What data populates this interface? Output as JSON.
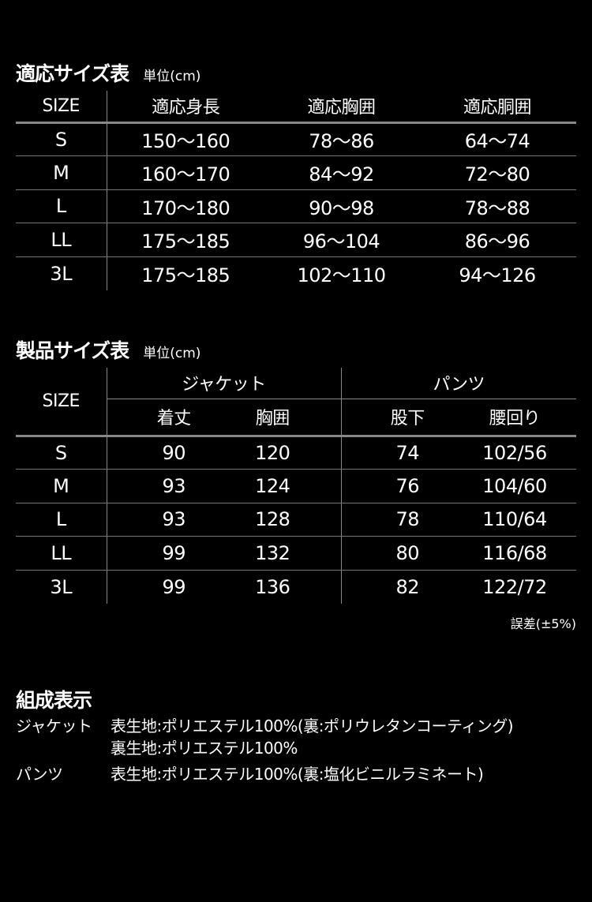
{
  "fit_table": {
    "title": "適応サイズ表",
    "unit": "単位(cm)",
    "headers": [
      "SIZE",
      "適応身長",
      "適応胸囲",
      "適応胴囲"
    ],
    "rows": [
      [
        "S",
        "150〜160",
        "78〜86",
        "64〜74"
      ],
      [
        "M",
        "160〜170",
        "84〜92",
        "72〜80"
      ],
      [
        "L",
        "170〜180",
        "90〜98",
        "78〜88"
      ],
      [
        "LL",
        "175〜185",
        "96〜104",
        "86〜96"
      ],
      [
        "3L",
        "175〜185",
        "102〜110",
        "94〜126"
      ]
    ]
  },
  "product_table": {
    "title": "製品サイズ表",
    "unit": "単位(cm)",
    "size_header": "SIZE",
    "groups": [
      "ジャケット",
      "パンツ"
    ],
    "sub_headers": [
      "着丈",
      "胸囲",
      "股下",
      "腰回り"
    ],
    "rows": [
      [
        "S",
        "90",
        "120",
        "74",
        "102/56"
      ],
      [
        "M",
        "93",
        "124",
        "76",
        "104/60"
      ],
      [
        "L",
        "93",
        "128",
        "78",
        "110/64"
      ],
      [
        "LL",
        "99",
        "132",
        "80",
        "116/68"
      ],
      [
        "3L",
        "99",
        "136",
        "82",
        "122/72"
      ]
    ],
    "note": "誤差(±5%)"
  },
  "composition": {
    "title": "組成表示",
    "items": [
      {
        "label": "ジャケット",
        "lines": [
          "表生地:ポリエステル100%(裏:ポリウレタンコーティング)",
          "裏生地:ポリエステル100%"
        ]
      },
      {
        "label": "パンツ",
        "lines": [
          "表生地:ポリエステル100%(裏:塩化ビニルラミネート)"
        ]
      }
    ]
  }
}
